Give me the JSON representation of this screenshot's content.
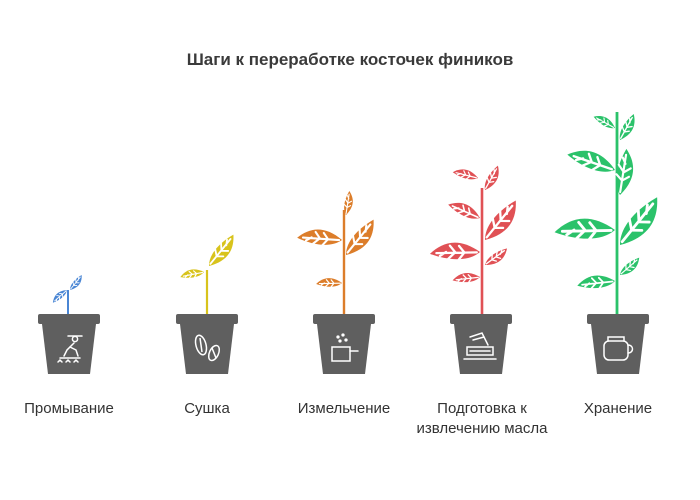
{
  "title": "Шаги к переработке косточек фиников",
  "steps": [
    {
      "label": "Промывание",
      "plant_color": "#4a86d4",
      "pot_icon": "farmer-washing-icon"
    },
    {
      "label": "Сушка",
      "plant_color": "#d8c31c",
      "pot_icon": "date-pits-icon"
    },
    {
      "label": "Измельчение",
      "plant_color": "#dc7d2a",
      "pot_icon": "grinding-pot-icon"
    },
    {
      "label": "Подготовка к извлечению масла",
      "plant_color": "#e05155",
      "pot_icon": "oil-press-icon"
    },
    {
      "label": "Хранение",
      "plant_color": "#2bc26a",
      "pot_icon": "storage-jar-icon"
    }
  ],
  "pot_color": "#5f5f5f"
}
